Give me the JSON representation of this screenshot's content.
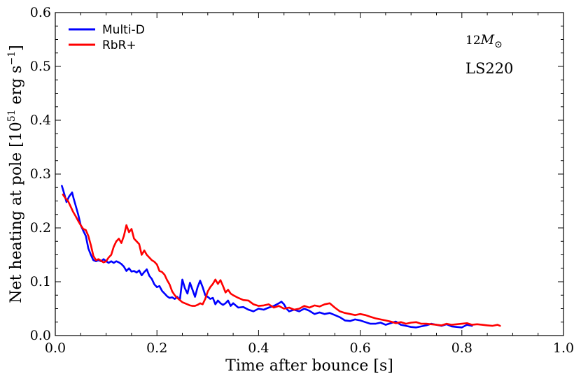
{
  "chart_data": {
    "type": "line",
    "title": "",
    "xlabel": "Time after bounce [s]",
    "ylabel_prefix": "Net heating at pole [10",
    "ylabel_exp1": "51",
    "ylabel_mid": " erg s",
    "ylabel_exp2": "−1",
    "ylabel_suffix": "]",
    "xlim": [
      0.0,
      1.0
    ],
    "ylim": [
      0.0,
      0.6
    ],
    "xticks": [
      "0.0",
      "0.2",
      "0.4",
      "0.6",
      "0.8",
      "1.0"
    ],
    "yticks": [
      "0.0",
      "0.1",
      "0.2",
      "0.3",
      "0.4",
      "0.5",
      "0.6"
    ],
    "legend": {
      "placement": "top-left"
    },
    "annotations": {
      "mass_value": "12",
      "mass_symbol": "M",
      "mass_subscript": "⊙",
      "eos": "LS220"
    },
    "series": [
      {
        "name": "Multi-D",
        "color": "#0000ff",
        "x": [
          0.013,
          0.018,
          0.022,
          0.027,
          0.03,
          0.033,
          0.036,
          0.04,
          0.045,
          0.05,
          0.055,
          0.06,
          0.065,
          0.07,
          0.075,
          0.08,
          0.085,
          0.09,
          0.095,
          0.1,
          0.105,
          0.11,
          0.115,
          0.12,
          0.125,
          0.13,
          0.135,
          0.14,
          0.145,
          0.15,
          0.155,
          0.16,
          0.165,
          0.17,
          0.175,
          0.18,
          0.185,
          0.19,
          0.195,
          0.2,
          0.205,
          0.21,
          0.215,
          0.22,
          0.225,
          0.23,
          0.235,
          0.24,
          0.245,
          0.25,
          0.255,
          0.26,
          0.265,
          0.27,
          0.275,
          0.28,
          0.285,
          0.29,
          0.295,
          0.3,
          0.305,
          0.31,
          0.315,
          0.32,
          0.325,
          0.33,
          0.335,
          0.34,
          0.345,
          0.35,
          0.36,
          0.37,
          0.38,
          0.39,
          0.4,
          0.41,
          0.42,
          0.43,
          0.44,
          0.445,
          0.45,
          0.455,
          0.46,
          0.47,
          0.48,
          0.49,
          0.5,
          0.51,
          0.52,
          0.53,
          0.54,
          0.55,
          0.56,
          0.57,
          0.58,
          0.59,
          0.6,
          0.61,
          0.62,
          0.63,
          0.64,
          0.65,
          0.66,
          0.67,
          0.68,
          0.69,
          0.7,
          0.71,
          0.72,
          0.73,
          0.74,
          0.75,
          0.76,
          0.77,
          0.78,
          0.79,
          0.8,
          0.81,
          0.82
        ],
        "y": [
          0.278,
          0.262,
          0.248,
          0.258,
          0.262,
          0.266,
          0.255,
          0.242,
          0.225,
          0.205,
          0.195,
          0.185,
          0.162,
          0.15,
          0.14,
          0.138,
          0.14,
          0.138,
          0.142,
          0.138,
          0.135,
          0.138,
          0.135,
          0.138,
          0.136,
          0.133,
          0.128,
          0.12,
          0.125,
          0.119,
          0.12,
          0.117,
          0.121,
          0.112,
          0.118,
          0.123,
          0.111,
          0.105,
          0.095,
          0.09,
          0.092,
          0.083,
          0.078,
          0.073,
          0.07,
          0.071,
          0.068,
          0.072,
          0.066,
          0.104,
          0.088,
          0.078,
          0.098,
          0.085,
          0.072,
          0.09,
          0.102,
          0.09,
          0.075,
          0.072,
          0.068,
          0.07,
          0.058,
          0.065,
          0.06,
          0.057,
          0.06,
          0.065,
          0.055,
          0.06,
          0.052,
          0.053,
          0.048,
          0.045,
          0.05,
          0.048,
          0.052,
          0.055,
          0.06,
          0.063,
          0.058,
          0.05,
          0.045,
          0.048,
          0.045,
          0.05,
          0.046,
          0.04,
          0.043,
          0.04,
          0.042,
          0.038,
          0.034,
          0.028,
          0.027,
          0.03,
          0.028,
          0.025,
          0.022,
          0.022,
          0.024,
          0.02,
          0.023,
          0.026,
          0.02,
          0.018,
          0.016,
          0.015,
          0.017,
          0.019,
          0.022,
          0.02,
          0.018,
          0.021,
          0.017,
          0.016,
          0.015,
          0.02,
          0.018
        ]
      },
      {
        "name": "RbR+",
        "color": "#ff0000",
        "x": [
          0.015,
          0.02,
          0.025,
          0.03,
          0.035,
          0.04,
          0.045,
          0.05,
          0.055,
          0.06,
          0.065,
          0.07,
          0.075,
          0.08,
          0.085,
          0.09,
          0.095,
          0.1,
          0.105,
          0.11,
          0.115,
          0.12,
          0.125,
          0.13,
          0.135,
          0.14,
          0.145,
          0.15,
          0.155,
          0.16,
          0.165,
          0.17,
          0.175,
          0.18,
          0.185,
          0.19,
          0.195,
          0.2,
          0.205,
          0.21,
          0.215,
          0.22,
          0.225,
          0.23,
          0.235,
          0.24,
          0.245,
          0.25,
          0.255,
          0.26,
          0.265,
          0.27,
          0.275,
          0.28,
          0.285,
          0.29,
          0.295,
          0.3,
          0.305,
          0.31,
          0.315,
          0.32,
          0.325,
          0.33,
          0.335,
          0.34,
          0.345,
          0.35,
          0.36,
          0.37,
          0.38,
          0.39,
          0.4,
          0.41,
          0.42,
          0.43,
          0.44,
          0.45,
          0.46,
          0.47,
          0.48,
          0.49,
          0.5,
          0.51,
          0.52,
          0.53,
          0.54,
          0.55,
          0.56,
          0.57,
          0.58,
          0.59,
          0.6,
          0.61,
          0.62,
          0.63,
          0.64,
          0.65,
          0.66,
          0.67,
          0.68,
          0.69,
          0.7,
          0.71,
          0.72,
          0.73,
          0.74,
          0.75,
          0.76,
          0.77,
          0.78,
          0.79,
          0.8,
          0.81,
          0.82,
          0.83,
          0.84,
          0.85,
          0.86,
          0.87,
          0.875
        ],
        "y": [
          0.262,
          0.255,
          0.25,
          0.24,
          0.23,
          0.222,
          0.213,
          0.205,
          0.198,
          0.196,
          0.185,
          0.168,
          0.148,
          0.14,
          0.142,
          0.139,
          0.136,
          0.138,
          0.145,
          0.15,
          0.165,
          0.175,
          0.18,
          0.172,
          0.185,
          0.205,
          0.192,
          0.198,
          0.18,
          0.175,
          0.17,
          0.15,
          0.158,
          0.15,
          0.145,
          0.14,
          0.137,
          0.132,
          0.12,
          0.118,
          0.113,
          0.103,
          0.095,
          0.082,
          0.075,
          0.07,
          0.066,
          0.062,
          0.06,
          0.058,
          0.056,
          0.055,
          0.055,
          0.057,
          0.06,
          0.058,
          0.068,
          0.082,
          0.09,
          0.096,
          0.104,
          0.096,
          0.103,
          0.092,
          0.08,
          0.085,
          0.078,
          0.075,
          0.07,
          0.066,
          0.065,
          0.058,
          0.055,
          0.056,
          0.058,
          0.052,
          0.055,
          0.05,
          0.052,
          0.048,
          0.05,
          0.055,
          0.052,
          0.056,
          0.054,
          0.058,
          0.06,
          0.052,
          0.045,
          0.042,
          0.04,
          0.038,
          0.04,
          0.038,
          0.035,
          0.032,
          0.03,
          0.028,
          0.026,
          0.023,
          0.025,
          0.022,
          0.024,
          0.025,
          0.022,
          0.022,
          0.021,
          0.02,
          0.019,
          0.022,
          0.02,
          0.021,
          0.022,
          0.023,
          0.02,
          0.021,
          0.02,
          0.019,
          0.018,
          0.02,
          0.018
        ]
      }
    ]
  }
}
